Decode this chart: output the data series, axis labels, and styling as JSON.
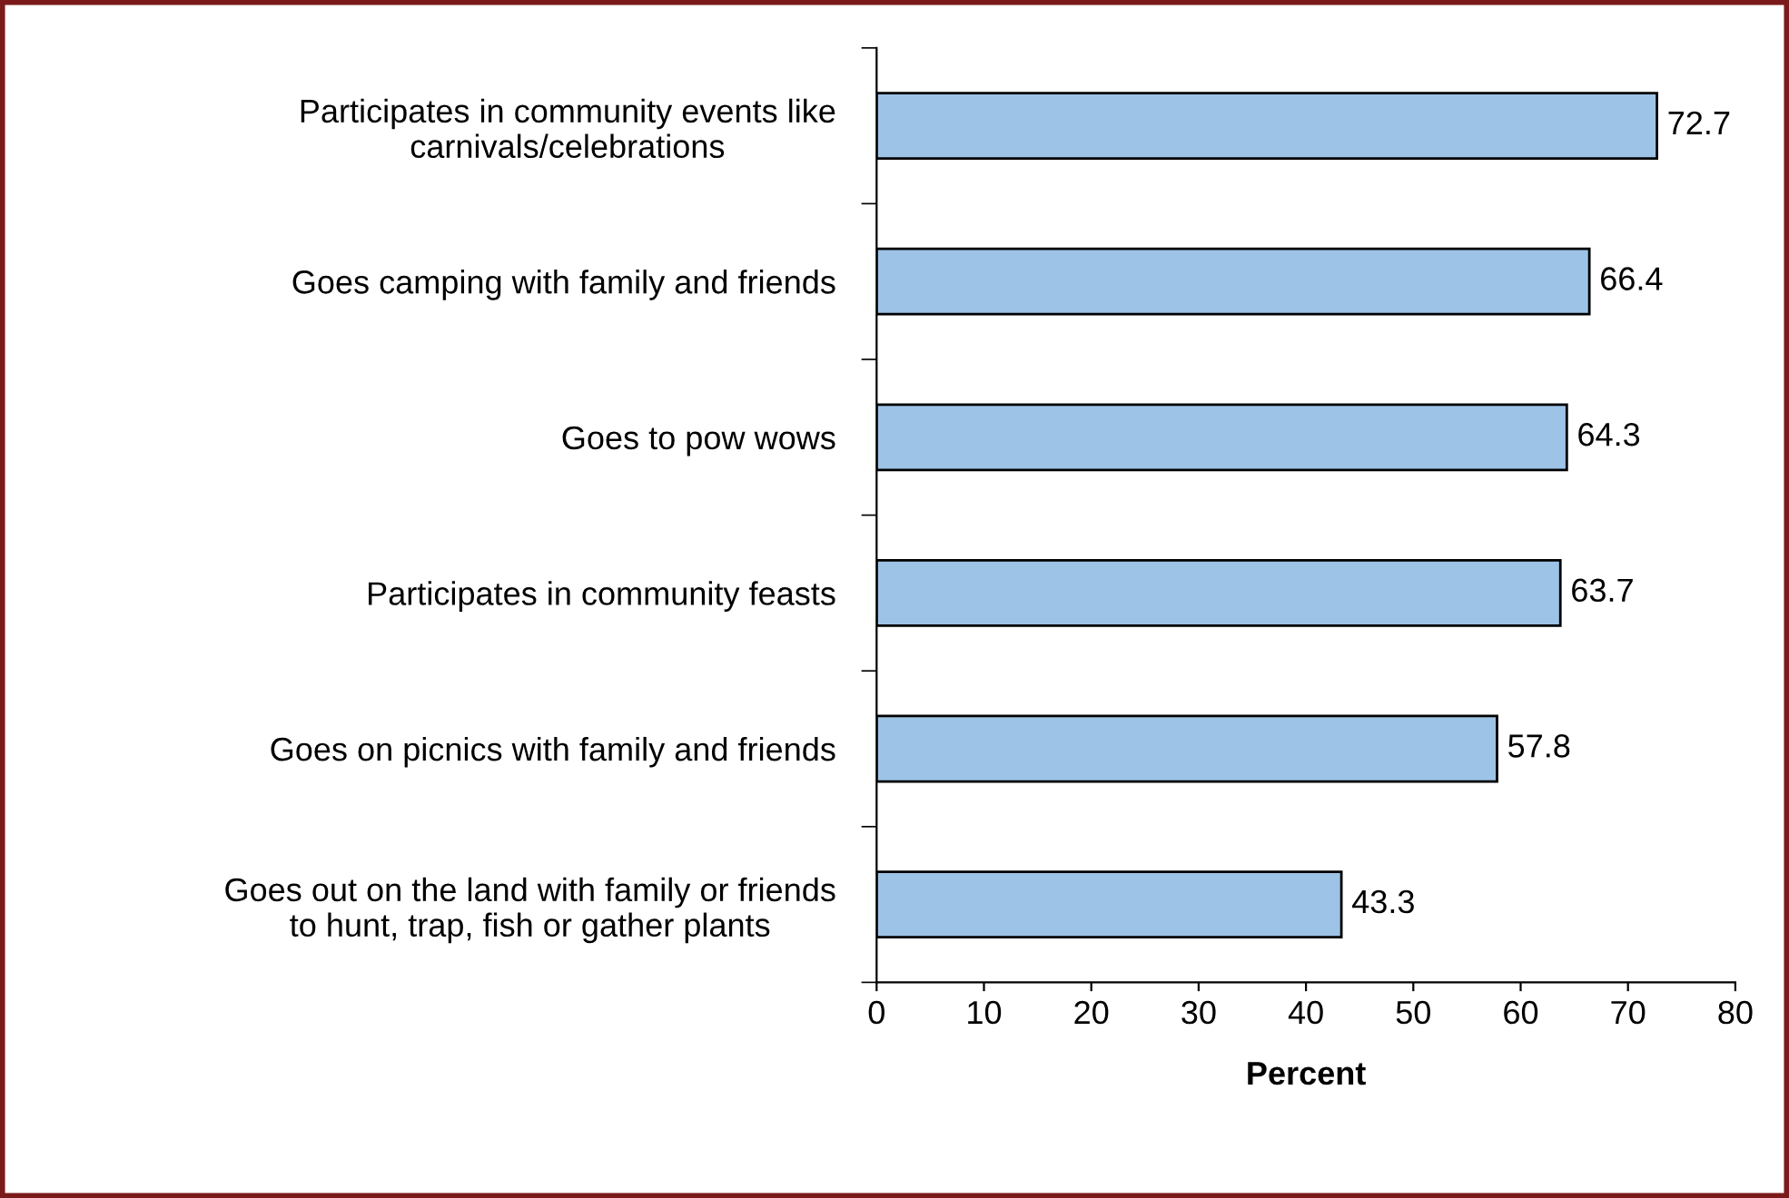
{
  "chart_data": {
    "type": "bar",
    "orientation": "horizontal",
    "xlabel": "Percent",
    "categories": [
      "Participates in community events like carnivals/celebrations",
      "Goes camping with family and friends",
      "Goes to pow wows",
      "Participates in community feasts",
      "Goes on picnics with family and friends",
      "Goes out on the land with family or friends to hunt, trap, fish or gather plants"
    ],
    "values": [
      72.7,
      66.4,
      64.3,
      63.7,
      57.8,
      43.3
    ],
    "color": "#9dc3e6",
    "data_labels": true,
    "grid": false,
    "legend": false,
    "xlim": [
      0,
      80
    ],
    "xticks": [
      0,
      10,
      20,
      30,
      40,
      50,
      60,
      70,
      80
    ]
  }
}
